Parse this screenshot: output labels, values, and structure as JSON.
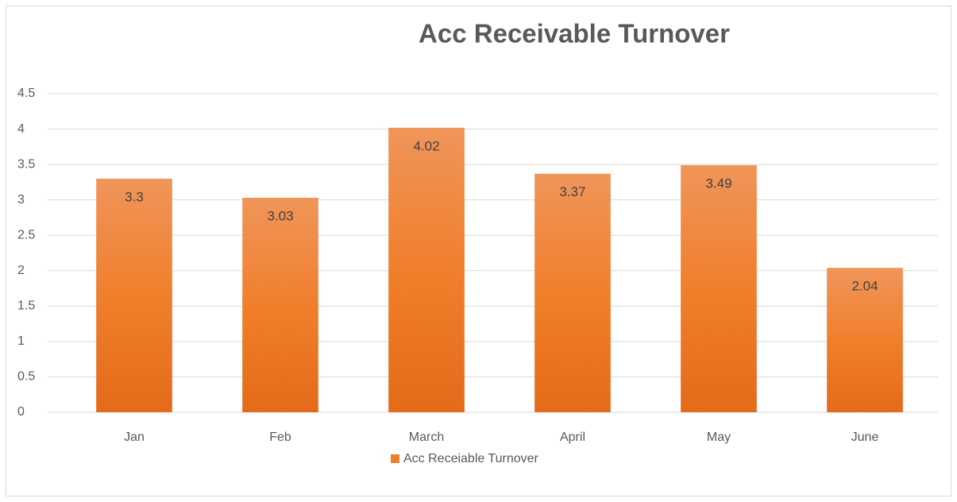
{
  "chart_data": {
    "type": "bar",
    "title": "Acc Receivable Turnover",
    "categories": [
      "Jan",
      "Feb",
      "March",
      "April",
      "May",
      "June"
    ],
    "series": [
      {
        "name": "Acc Receiable Turnover",
        "color": "#ed7d31",
        "values": [
          3.3,
          3.03,
          4.02,
          3.37,
          3.49,
          2.04
        ]
      }
    ],
    "ylim": [
      0,
      4.5
    ],
    "yticks": [
      0,
      0.5,
      1,
      1.5,
      2,
      2.5,
      3,
      3.5,
      4,
      4.5
    ],
    "grid": true,
    "legend": "bottom"
  }
}
